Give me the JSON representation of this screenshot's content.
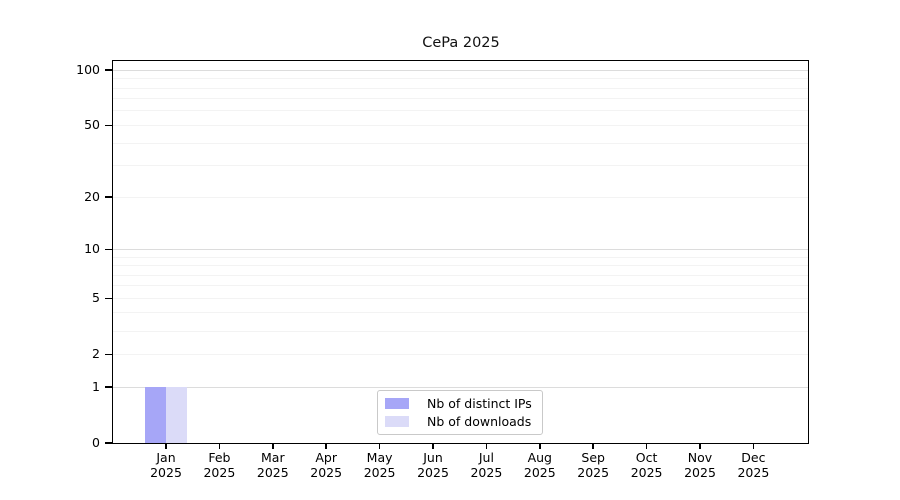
{
  "title": "CePa 2025",
  "chart_data": {
    "type": "bar",
    "title": "CePa 2025",
    "categories": [
      "Jan",
      "Feb",
      "Mar",
      "Apr",
      "May",
      "Jun",
      "Jul",
      "Aug",
      "Sep",
      "Oct",
      "Nov",
      "Dec"
    ],
    "year_label": "2025",
    "series": [
      {
        "name": "Nb of distinct IPs",
        "color": "#a6a6f7",
        "values": [
          1,
          0,
          0,
          0,
          0,
          0,
          0,
          0,
          0,
          0,
          0,
          0
        ]
      },
      {
        "name": "Nb of downloads",
        "color": "#dbdbf8",
        "values": [
          1,
          0,
          0,
          0,
          0,
          0,
          0,
          0,
          0,
          0,
          0,
          0
        ]
      }
    ],
    "y_ticks": [
      0,
      1,
      2,
      5,
      10,
      20,
      50,
      100
    ],
    "y_scale": "log1p",
    "ylim": [
      0,
      110
    ],
    "grid": {
      "major_values": [
        1,
        10,
        100
      ],
      "minor_values": [
        2,
        3,
        4,
        5,
        6,
        7,
        8,
        9,
        20,
        30,
        40,
        50,
        60,
        70,
        80,
        90
      ],
      "major_color": "#dcdcdc",
      "minor_color": "#f3f3f3"
    },
    "legend_position": "bottom-center",
    "axis_color": "#000000"
  }
}
